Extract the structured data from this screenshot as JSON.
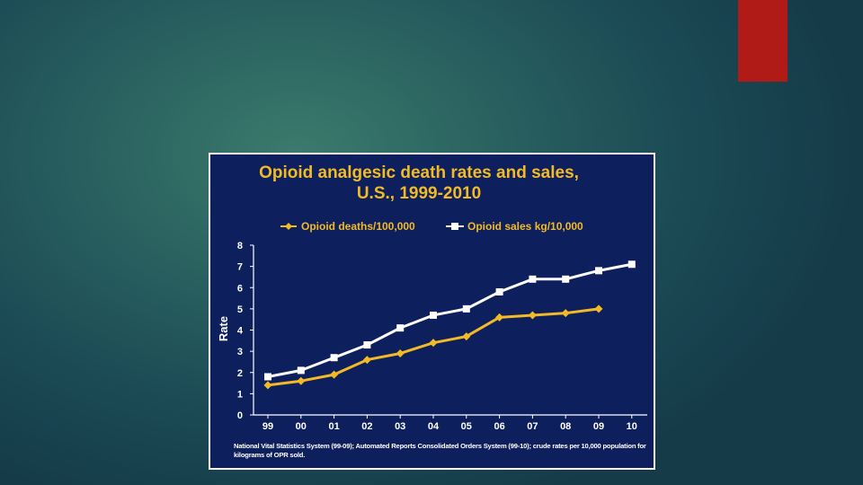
{
  "slide": {
    "accent_color": "#b01a17"
  },
  "chart_data": {
    "type": "line",
    "title_line1": "Opioid analgesic death rates and sales,",
    "title_line2": "U.S., 1999-2010",
    "title_color": "#f2bb26",
    "background_color": "#0e1f5e",
    "ylabel": "Rate",
    "xlabel": "",
    "categories": [
      "99",
      "00",
      "01",
      "02",
      "03",
      "04",
      "05",
      "06",
      "07",
      "08",
      "09",
      "10"
    ],
    "yticks": [
      "0",
      "1",
      "2",
      "3",
      "4",
      "5",
      "6",
      "7",
      "8"
    ],
    "ylim": [
      0,
      8
    ],
    "grid": false,
    "legend_position": "top",
    "series": [
      {
        "name": "Opioid deaths/100,000",
        "color": "#f2bb26",
        "marker": "diamond",
        "values": [
          1.4,
          1.6,
          1.9,
          2.6,
          2.9,
          3.4,
          3.7,
          4.6,
          4.7,
          4.8,
          5.0,
          null
        ]
      },
      {
        "name": "Opioid sales kg/10,000",
        "color": "#ffffff",
        "marker": "square",
        "values": [
          1.8,
          2.1,
          2.7,
          3.3,
          4.1,
          4.7,
          5.0,
          5.8,
          6.4,
          6.4,
          6.8,
          7.1
        ]
      }
    ],
    "footnote": "National Vital Statistics System (99-09); Automated Reports Consolidated Orders System (99-10); crude rates per 10,000 population for  kilograms of OPR sold."
  }
}
